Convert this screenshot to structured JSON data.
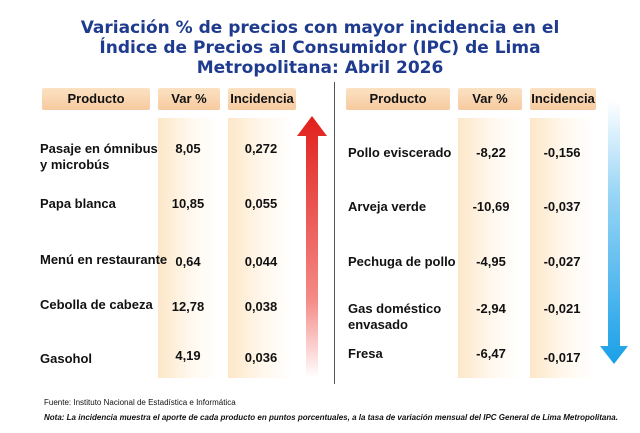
{
  "title": {
    "line1": "Variación % de precios con mayor incidencia en el",
    "line2": "Índice de Precios al Consumidor (IPC) de Lima",
    "line3": "Metropolitana: Abril 2026"
  },
  "headers": {
    "producto": "Producto",
    "var": "Var %",
    "incidencia": "Incidencia"
  },
  "left_rows": [
    {
      "producto": "Pasaje en ómnibus",
      "producto2": "y microbús",
      "var": "8,05",
      "incidencia": "0,272"
    },
    {
      "producto": "Papa blanca",
      "var": "10,85",
      "incidencia": "0,055"
    },
    {
      "producto": "Menú en restaurante",
      "var": "0,64",
      "incidencia": "0,044"
    },
    {
      "producto": "Cebolla de cabeza",
      "var": "12,78",
      "incidencia": "0,038"
    },
    {
      "producto": "Gasohol",
      "var": "4,19",
      "incidencia": "0,036"
    }
  ],
  "right_rows": [
    {
      "producto": "Pollo eviscerado",
      "var": "-8,22",
      "incidencia": "-0,156"
    },
    {
      "producto": "Arveja verde",
      "var": "-10,69",
      "incidencia": "-0,037"
    },
    {
      "producto": "Pechuga de pollo",
      "var": "-4,95",
      "incidencia": "-0,027"
    },
    {
      "producto": "Gas doméstico",
      "producto2": "envasado",
      "var": "-2,94",
      "incidencia": "-0,021"
    },
    {
      "producto": "Fresa",
      "var": "-6,47",
      "incidencia": "-0,017"
    }
  ],
  "footer": {
    "source": "Fuente: Instituto  Nacional de Estadística  e Informática",
    "note": "Nota: La incidencia muestra  el aporte de cada producto en puntos porcentuales,  a la tasa de variación  mensual  del IPC General de Lima Metropolitana."
  },
  "colors": {
    "title": "#1f3b8f",
    "up_arrow": "#e0201c",
    "down_arrow": "#1aa0e8"
  },
  "icons": {
    "up": "up-arrow-icon",
    "down": "down-arrow-icon"
  }
}
